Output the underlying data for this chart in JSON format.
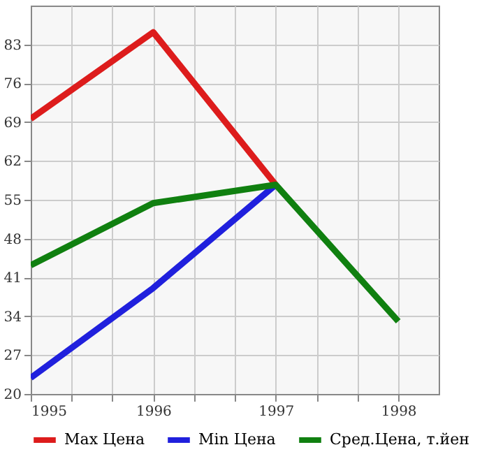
{
  "chart_data": {
    "type": "line",
    "x": [
      1995,
      1996,
      1997,
      1998
    ],
    "series": [
      {
        "name": "Max Цена",
        "color": "#dd1c1c",
        "values": [
          69.6,
          85.2,
          57.7,
          null
        ]
      },
      {
        "name": "Min Цена",
        "color": "#2020dd",
        "values": [
          22.9,
          39.1,
          57.7,
          null
        ]
      },
      {
        "name": "Сред.Цена, т.йен",
        "color": "#108010",
        "values": [
          43.2,
          54.4,
          57.7,
          33.1
        ]
      }
    ],
    "xlim": [
      1995,
      1998.33
    ],
    "xticks": [
      1995,
      {
        "value": 1995.333,
        "label": null
      },
      {
        "value": 1995.667,
        "label": null
      },
      1996,
      {
        "value": 1996.333,
        "label": null
      },
      {
        "value": 1996.667,
        "label": null
      },
      1997,
      {
        "value": 1997.333,
        "label": null
      },
      {
        "value": 1997.667,
        "label": null
      },
      1998
    ],
    "ylim": [
      20,
      90
    ],
    "yticks": [
      20,
      27,
      34,
      41,
      48,
      55,
      62,
      69,
      76,
      83
    ],
    "grid": true,
    "legend": "bottom",
    "marker": "none",
    "line_style": "solid"
  }
}
